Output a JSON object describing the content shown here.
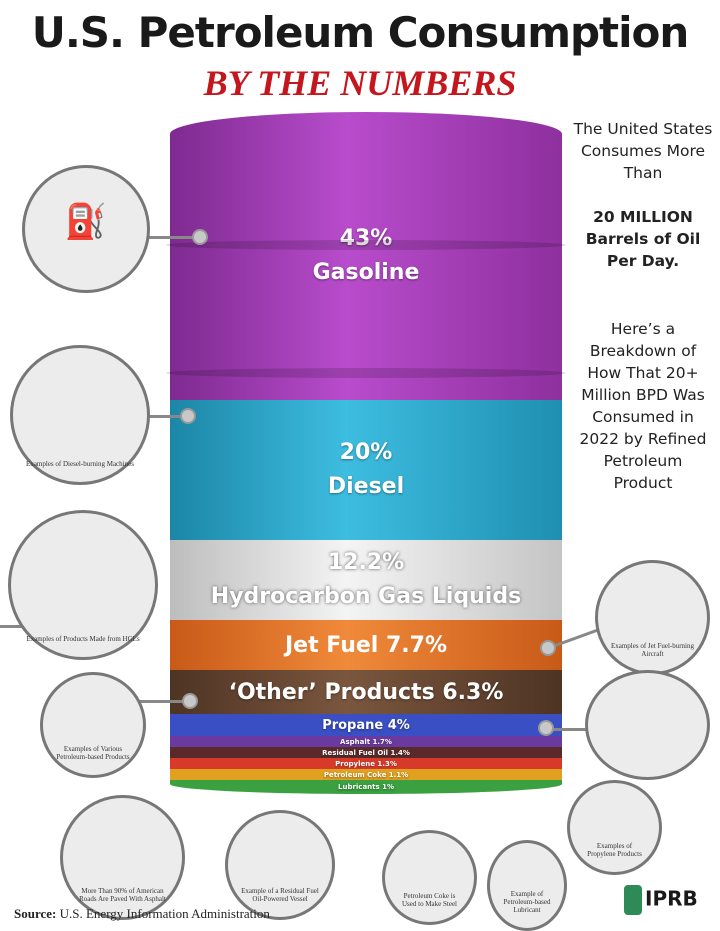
{
  "title": "U.S. Petroleum Consumption",
  "subtitle": "BY THE NUMBERS",
  "side_text": {
    "l1": "The United States Consumes More Than",
    "l2": "20 MILLION Barrels of Oil Per Day.",
    "l3": "Here’s a Breakdown of How That 20+ Million BPD Was Consumed in 2022 by Refined Petroleum Product"
  },
  "chart_data": {
    "type": "bar",
    "stacked": true,
    "categories": [
      "Gasoline",
      "Diesel",
      "Hydrocarbon Gas Liquids",
      "Jet Fuel",
      "'Other' Products",
      "Propane",
      "Asphalt",
      "Residual Fuel Oil",
      "Propylene",
      "Petroleum Coke",
      "Lubricants"
    ],
    "values": [
      43,
      20,
      12.2,
      7.7,
      6.3,
      4,
      1.7,
      1.4,
      1.3,
      1.1,
      1
    ],
    "unit": "%",
    "labels": {
      "gasoline_pct": "43%",
      "gasoline": "Gasoline",
      "diesel_pct": "20%",
      "diesel": "Diesel",
      "hgl_pct": "12.2%",
      "hgl": "Hydrocarbon Gas Liquids",
      "jet": "Jet Fuel 7.7%",
      "other": "‘Other’ Products 6.3%",
      "propane": "Propane 4%",
      "asphalt": "Asphalt 1.7%",
      "residual": "Residual Fuel Oil 1.4%",
      "propylene": "Propylene 1.3%",
      "coke": "Petroleum Coke 1.1%",
      "lubricants": "Lubricants 1%"
    },
    "colors": {
      "gasoline": "#a43fb8",
      "diesel": "#2aa7c9",
      "hgl": "#e6e6e6",
      "jet": "#e8762a",
      "other": "#6b4a36",
      "propane": "#3a4fc4",
      "asphalt": "#6a3aa0",
      "residual": "#5a2a2a",
      "propylene": "#d83a2a",
      "coke": "#e0a020",
      "lubricants": "#3aa040"
    }
  },
  "captions": {
    "diesel": "Examples of Diesel-burning Machines",
    "hgl": "Examples of Products Made from HGLs",
    "other": "Examples of Various Petroleum-based Products",
    "jet": "Examples of Jet Fuel-burning Aircraft",
    "asphalt": "More Than 90% of American Roads Are Paved With Asphalt",
    "residual": "Example of a Residual Fuel Oil-Powered Vessel",
    "coke": "Petroleum Coke is Used to Make Steel",
    "lubricant": "Example of Petroleum-based Lubricant",
    "propylene": "Examples of Propylene Products"
  },
  "source": {
    "label": "Source:",
    "text": " U.S. Energy Information Administration"
  },
  "logo": "IPRB"
}
